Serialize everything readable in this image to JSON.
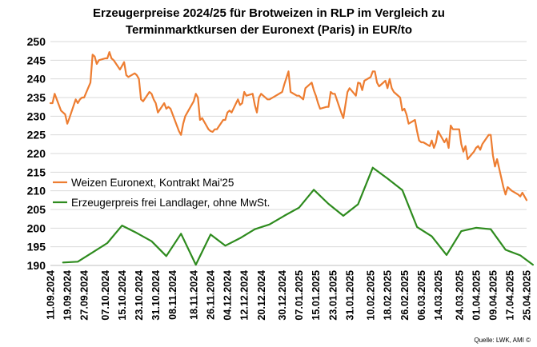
{
  "chart_data": {
    "type": "line",
    "title": [
      "Erzeugerpreise 2024/25 für Brotweizen in RLP im Vergleich zu",
      "Terminmarktkursen der Euronext (Paris) in EUR/to"
    ],
    "ylim": [
      190,
      250
    ],
    "yticks": [
      190,
      195,
      200,
      205,
      210,
      215,
      220,
      225,
      230,
      235,
      240,
      245,
      250
    ],
    "xlim": [
      "2024-09-11",
      "2025-04-25"
    ],
    "xticks": [
      "11.09.2024",
      "19.09.2024",
      "27.09.2024",
      "07.10.2024",
      "15.10.2024",
      "23.10.2024",
      "31.10.2024",
      "08.11.2024",
      "18.11.2024",
      "26.11.2024",
      "04.12.2024",
      "12.12.2024",
      "20.12.2024",
      "30.12.2024",
      "07.01.2025",
      "15.01.2025",
      "23.01.2025",
      "31.01.2025",
      "10.02.2025",
      "18.02.2025",
      "26.02.2025",
      "06.03.2025",
      "14.03.2025",
      "24.03.2025",
      "01.04.2025",
      "09.04.2025",
      "17.04.2025",
      "25.04.2025"
    ],
    "grid": "horizontal",
    "legend_position": "left-middle",
    "series": [
      {
        "name": "Weizen Euronext, Kontrakt Mai'25",
        "color": "#ED7D31",
        "points": [
          [
            "2024-09-11",
            233.5
          ],
          [
            "2024-09-12",
            233.5
          ],
          [
            "2024-09-13",
            236
          ],
          [
            "2024-09-16",
            231.5
          ],
          [
            "2024-09-17",
            231
          ],
          [
            "2024-09-18",
            230.5
          ],
          [
            "2024-09-19",
            228
          ],
          [
            "2024-09-20",
            229.5
          ],
          [
            "2024-09-23",
            234.5
          ],
          [
            "2024-09-24",
            233.5
          ],
          [
            "2024-09-25",
            234.5
          ],
          [
            "2024-09-26",
            235
          ],
          [
            "2024-09-27",
            235
          ],
          [
            "2024-09-30",
            239
          ],
          [
            "2024-10-01",
            246.5
          ],
          [
            "2024-10-02",
            246
          ],
          [
            "2024-10-03",
            244
          ],
          [
            "2024-10-04",
            245
          ],
          [
            "2024-10-07",
            245.5
          ],
          [
            "2024-10-08",
            245.5
          ],
          [
            "2024-10-09",
            247.2
          ],
          [
            "2024-10-10",
            245.5
          ],
          [
            "2024-10-11",
            245
          ],
          [
            "2024-10-14",
            242.5
          ],
          [
            "2024-10-15",
            243.5
          ],
          [
            "2024-10-16",
            244.5
          ],
          [
            "2024-10-17",
            241
          ],
          [
            "2024-10-18",
            240.5
          ],
          [
            "2024-10-21",
            241.5
          ],
          [
            "2024-10-22",
            241
          ],
          [
            "2024-10-23",
            240
          ],
          [
            "2024-10-24",
            234.5
          ],
          [
            "2024-10-25",
            234
          ],
          [
            "2024-10-28",
            236.5
          ],
          [
            "2024-10-29",
            236
          ],
          [
            "2024-10-30",
            234.5
          ],
          [
            "2024-10-31",
            233.5
          ],
          [
            "2024-11-01",
            231
          ],
          [
            "2024-11-04",
            233.5
          ],
          [
            "2024-11-05",
            232
          ],
          [
            "2024-11-06",
            232.5
          ],
          [
            "2024-11-07",
            232
          ],
          [
            "2024-11-08",
            230.5
          ],
          [
            "2024-11-11",
            226
          ],
          [
            "2024-11-12",
            225
          ],
          [
            "2024-11-13",
            228
          ],
          [
            "2024-11-14",
            230
          ],
          [
            "2024-11-15",
            231
          ],
          [
            "2024-11-18",
            234
          ],
          [
            "2024-11-19",
            236
          ],
          [
            "2024-11-20",
            235
          ],
          [
            "2024-11-21",
            229
          ],
          [
            "2024-11-22",
            229.5
          ],
          [
            "2024-11-25",
            226.5
          ],
          [
            "2024-11-26",
            226
          ],
          [
            "2024-11-27",
            225.8
          ],
          [
            "2024-11-28",
            226.5
          ],
          [
            "2024-11-29",
            226.5
          ],
          [
            "2024-12-02",
            229
          ],
          [
            "2024-12-03",
            229
          ],
          [
            "2024-12-04",
            231
          ],
          [
            "2024-12-05",
            231.5
          ],
          [
            "2024-12-06",
            231
          ],
          [
            "2024-12-09",
            234.5
          ],
          [
            "2024-12-10",
            233
          ],
          [
            "2024-12-11",
            233.5
          ],
          [
            "2024-12-12",
            236.5
          ],
          [
            "2024-12-13",
            235.5
          ],
          [
            "2024-12-16",
            236
          ],
          [
            "2024-12-17",
            233
          ],
          [
            "2024-12-18",
            231
          ],
          [
            "2024-12-19",
            235
          ],
          [
            "2024-12-20",
            236
          ],
          [
            "2024-12-23",
            234.5
          ],
          [
            "2024-12-24",
            234.5
          ],
          [
            "2024-12-27",
            235.5
          ],
          [
            "2024-12-30",
            236.5
          ],
          [
            "2024-12-31",
            238.5
          ],
          [
            "2025-01-02",
            242
          ],
          [
            "2025-01-03",
            236.5
          ],
          [
            "2025-01-06",
            235.5
          ],
          [
            "2025-01-07",
            235.5
          ],
          [
            "2025-01-08",
            235
          ],
          [
            "2025-01-09",
            234.5
          ],
          [
            "2025-01-10",
            237.5
          ],
          [
            "2025-01-13",
            239
          ],
          [
            "2025-01-14",
            237
          ],
          [
            "2025-01-15",
            235.5
          ],
          [
            "2025-01-16",
            233.5
          ],
          [
            "2025-01-17",
            232
          ],
          [
            "2025-01-20",
            232.5
          ],
          [
            "2025-01-21",
            232.5
          ],
          [
            "2025-01-22",
            236.5
          ],
          [
            "2025-01-23",
            236
          ],
          [
            "2025-01-24",
            236
          ],
          [
            "2025-01-27",
            231
          ],
          [
            "2025-01-28",
            229.5
          ],
          [
            "2025-01-29",
            233
          ],
          [
            "2025-01-30",
            236.5
          ],
          [
            "2025-01-31",
            237.5
          ],
          [
            "2025-02-03",
            235.5
          ],
          [
            "2025-02-04",
            239
          ],
          [
            "2025-02-05",
            238.8
          ],
          [
            "2025-02-06",
            237
          ],
          [
            "2025-02-07",
            239.5
          ],
          [
            "2025-02-10",
            240.5
          ],
          [
            "2025-02-11",
            242
          ],
          [
            "2025-02-12",
            242
          ],
          [
            "2025-02-13",
            239
          ],
          [
            "2025-02-14",
            238
          ],
          [
            "2025-02-17",
            239.5
          ],
          [
            "2025-02-18",
            237.5
          ],
          [
            "2025-02-19",
            240
          ],
          [
            "2025-02-20",
            237.5
          ],
          [
            "2025-02-21",
            236.5
          ],
          [
            "2025-02-24",
            235
          ],
          [
            "2025-02-25",
            231.5
          ],
          [
            "2025-02-26",
            232
          ],
          [
            "2025-02-27",
            230.5
          ],
          [
            "2025-02-28",
            228
          ],
          [
            "2025-03-03",
            229
          ],
          [
            "2025-03-04",
            226
          ],
          [
            "2025-03-05",
            223.5
          ],
          [
            "2025-03-06",
            223
          ],
          [
            "2025-03-07",
            223
          ],
          [
            "2025-03-10",
            222
          ],
          [
            "2025-03-11",
            223.5
          ],
          [
            "2025-03-12",
            221.5
          ],
          [
            "2025-03-13",
            223
          ],
          [
            "2025-03-14",
            226
          ],
          [
            "2025-03-17",
            223
          ],
          [
            "2025-03-18",
            224
          ],
          [
            "2025-03-19",
            221.5
          ],
          [
            "2025-03-20",
            227.5
          ],
          [
            "2025-03-21",
            226.5
          ],
          [
            "2025-03-24",
            226.5
          ],
          [
            "2025-03-25",
            222.5
          ],
          [
            "2025-03-26",
            220.5
          ],
          [
            "2025-03-27",
            222
          ],
          [
            "2025-03-28",
            218.5
          ],
          [
            "2025-03-31",
            220.5
          ],
          [
            "2025-04-01",
            221.5
          ],
          [
            "2025-04-02",
            222
          ],
          [
            "2025-04-03",
            221
          ],
          [
            "2025-04-04",
            222.5
          ],
          [
            "2025-04-07",
            225
          ],
          [
            "2025-04-08",
            225
          ],
          [
            "2025-04-09",
            219.5
          ],
          [
            "2025-04-10",
            216.5
          ],
          [
            "2025-04-11",
            218.5
          ],
          [
            "2025-04-14",
            211
          ],
          [
            "2025-04-15",
            209
          ],
          [
            "2025-04-16",
            211
          ],
          [
            "2025-04-17",
            210.5
          ],
          [
            "2025-04-18",
            210
          ],
          [
            "2025-04-21",
            209
          ],
          [
            "2025-04-22",
            208.5
          ],
          [
            "2025-04-23",
            209.5
          ],
          [
            "2025-04-24",
            208.5
          ],
          [
            "2025-04-25",
            207.5
          ]
        ]
      },
      {
        "name": "Erzeugerpreis frei Landlager, ohne MwSt.",
        "color": "#2E8B1E",
        "points": [
          [
            "2024-09-17",
            190.8
          ],
          [
            "2024-09-24",
            191
          ],
          [
            "2024-10-01",
            193.5
          ],
          [
            "2024-10-08",
            196
          ],
          [
            "2024-10-15",
            200.7
          ],
          [
            "2024-10-22",
            198.7
          ],
          [
            "2024-10-29",
            196.5
          ],
          [
            "2024-11-05",
            192.5
          ],
          [
            "2024-11-12",
            198.5
          ],
          [
            "2024-11-19",
            190.2
          ],
          [
            "2024-11-26",
            198.3
          ],
          [
            "2024-12-03",
            195.3
          ],
          [
            "2024-12-10",
            197.3
          ],
          [
            "2024-12-17",
            199.7
          ],
          [
            "2024-12-24",
            201
          ],
          [
            "2024-12-31",
            203.3
          ],
          [
            "2025-01-07",
            205.5
          ],
          [
            "2025-01-14",
            210.3
          ],
          [
            "2025-01-21",
            206.5
          ],
          [
            "2025-01-28",
            203.3
          ],
          [
            "2025-02-04",
            206.4
          ],
          [
            "2025-02-11",
            216.2
          ],
          [
            "2025-02-18",
            213.3
          ],
          [
            "2025-02-25",
            210.2
          ],
          [
            "2025-03-04",
            200.3
          ],
          [
            "2025-03-11",
            197.8
          ],
          [
            "2025-03-18",
            192.8
          ],
          [
            "2025-03-25",
            199.2
          ],
          [
            "2025-04-01",
            200.1
          ],
          [
            "2025-04-08",
            199.7
          ],
          [
            "2025-04-15",
            194.2
          ],
          [
            "2025-04-22",
            192.7
          ],
          [
            "2025-04-28",
            190.2
          ]
        ]
      }
    ],
    "source": "Quelle: LWK, AMI ©"
  }
}
